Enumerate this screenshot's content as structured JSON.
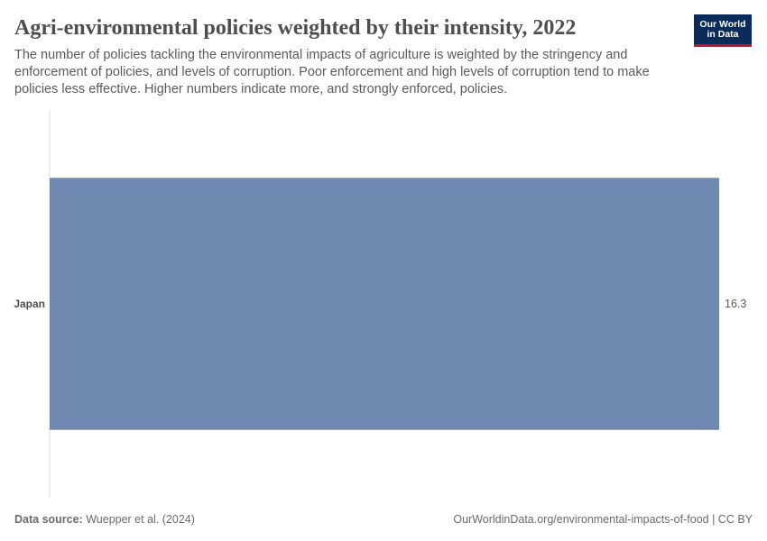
{
  "header": {
    "title": "Agri-environmental policies weighted by their intensity, 2022",
    "subtitle": "The number of policies tackling the environmental impacts of agriculture is weighted by the stringency and enforcement of policies, and levels of corruption. Poor enforcement and high levels of corruption tend to make policies less effective. Higher numbers indicate more, and strongly enforced, policies.",
    "logo_line1": "Our World",
    "logo_line2": "in Data"
  },
  "footer": {
    "source_label": "Data source:",
    "source_text": "Wuepper et al. (2024)",
    "url_license": "OurWorldinData.org/environmental-impacts-of-food | CC BY"
  },
  "colors": {
    "bar": "#6f88b0",
    "axis": "#dddddd",
    "logo_bg": "#0b2b5b",
    "logo_accent": "#c8102e"
  },
  "chart_data": {
    "type": "bar",
    "orientation": "horizontal",
    "title": "Agri-environmental policies weighted by their intensity, 2022",
    "categories": [
      "Japan"
    ],
    "values": [
      16.3
    ],
    "value_labels": [
      "16.3"
    ],
    "xlim": [
      0,
      16.3
    ],
    "grid": false
  }
}
